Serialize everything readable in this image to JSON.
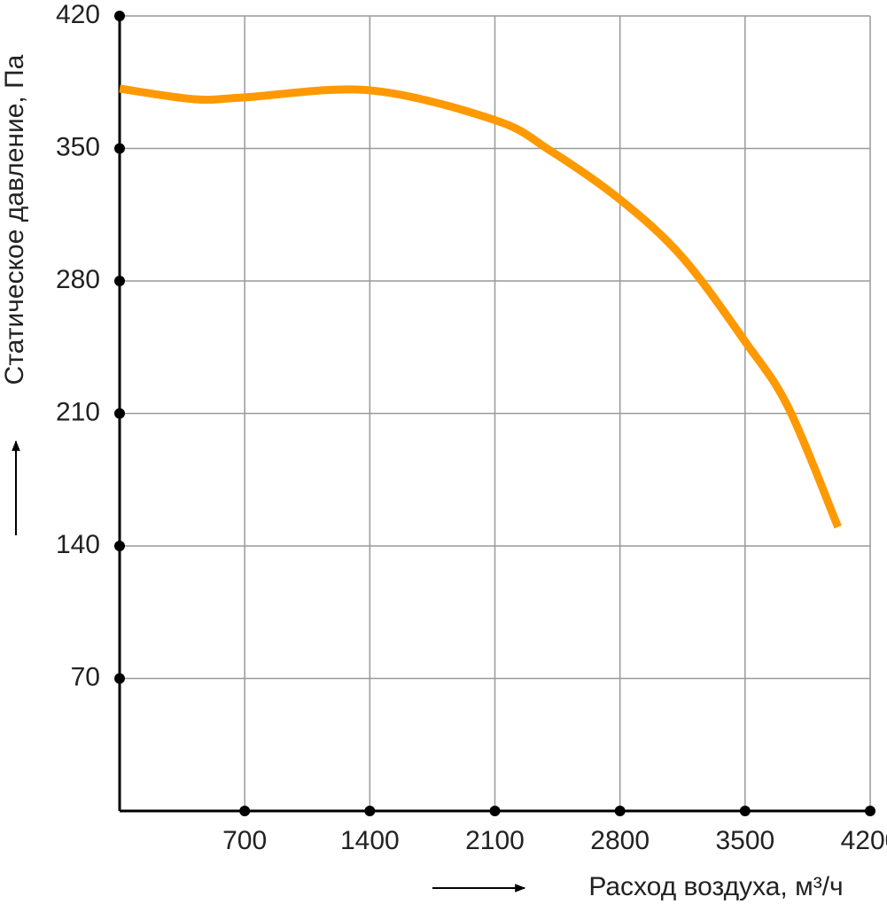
{
  "chart_data": {
    "type": "line",
    "x_label": "Расход воздуха, м³/ч",
    "y_label": "Статическое давление, Па",
    "xlim": [
      0,
      4200
    ],
    "ylim": [
      0,
      420
    ],
    "xticks": [
      700,
      1400,
      2100,
      2800,
      3500,
      4200
    ],
    "yticks": [
      70,
      140,
      210,
      280,
      350,
      420
    ],
    "grid": true,
    "series": [
      {
        "color": "#ff9900",
        "x": [
          0,
          421,
          700,
          1400,
          2100,
          2407,
          2800,
          3148,
          3500,
          3743,
          4020
        ],
        "values": [
          381.6,
          376,
          377,
          380.7,
          365,
          349,
          323,
          292.6,
          248,
          213,
          150
        ]
      }
    ]
  }
}
